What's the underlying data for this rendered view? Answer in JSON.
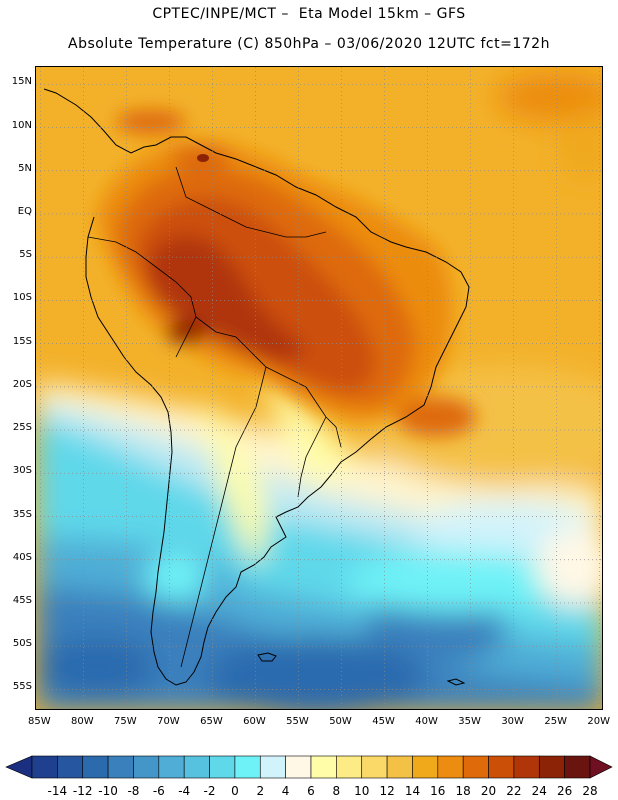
{
  "header": {
    "line1": "CPTEC/INPE/MCT –  Eta Model 15km – GFS",
    "line2": "Absolute Temperature (C) 850hPa – 03/06/2020 12UTC fct=172h"
  },
  "axes": {
    "lat_labels": [
      "15N",
      "10N",
      "5N",
      "EQ",
      "5S",
      "10S",
      "15S",
      "20S",
      "25S",
      "30S",
      "35S",
      "40S",
      "45S",
      "50S",
      "55S"
    ],
    "lon_labels": [
      "85W",
      "80W",
      "75W",
      "70W",
      "65W",
      "60W",
      "55W",
      "50W",
      "45W",
      "40W",
      "35W",
      "30W",
      "25W",
      "20W"
    ],
    "lat_range": [
      17.0,
      -57.5
    ],
    "lon_range": [
      -85.5,
      -19.5
    ]
  },
  "colorbar": {
    "labels": [
      "-14",
      "-12",
      "-10",
      "-8",
      "-6",
      "-4",
      "-2",
      "0",
      "2",
      "4",
      "6",
      "8",
      "10",
      "12",
      "14",
      "16",
      "18",
      "20",
      "22",
      "24",
      "26",
      "28"
    ],
    "colors": [
      "#1f3f8f",
      "#2656a0",
      "#2c6aae",
      "#3a80bd",
      "#4496c8",
      "#4fadd6",
      "#57c2e0",
      "#5fd8ea",
      "#6ef2f7",
      "#d1f3fb",
      "#fff8e6",
      "#fffda8",
      "#fdeb85",
      "#fbd968",
      "#f4c147",
      "#f0a91b",
      "#ec8c10",
      "#de6a0a",
      "#cc4f08",
      "#b0360a",
      "#8c2306",
      "#6a1410"
    ],
    "underflow_color": "#1a2f80",
    "overflow_color": "#6e0f22"
  }
}
